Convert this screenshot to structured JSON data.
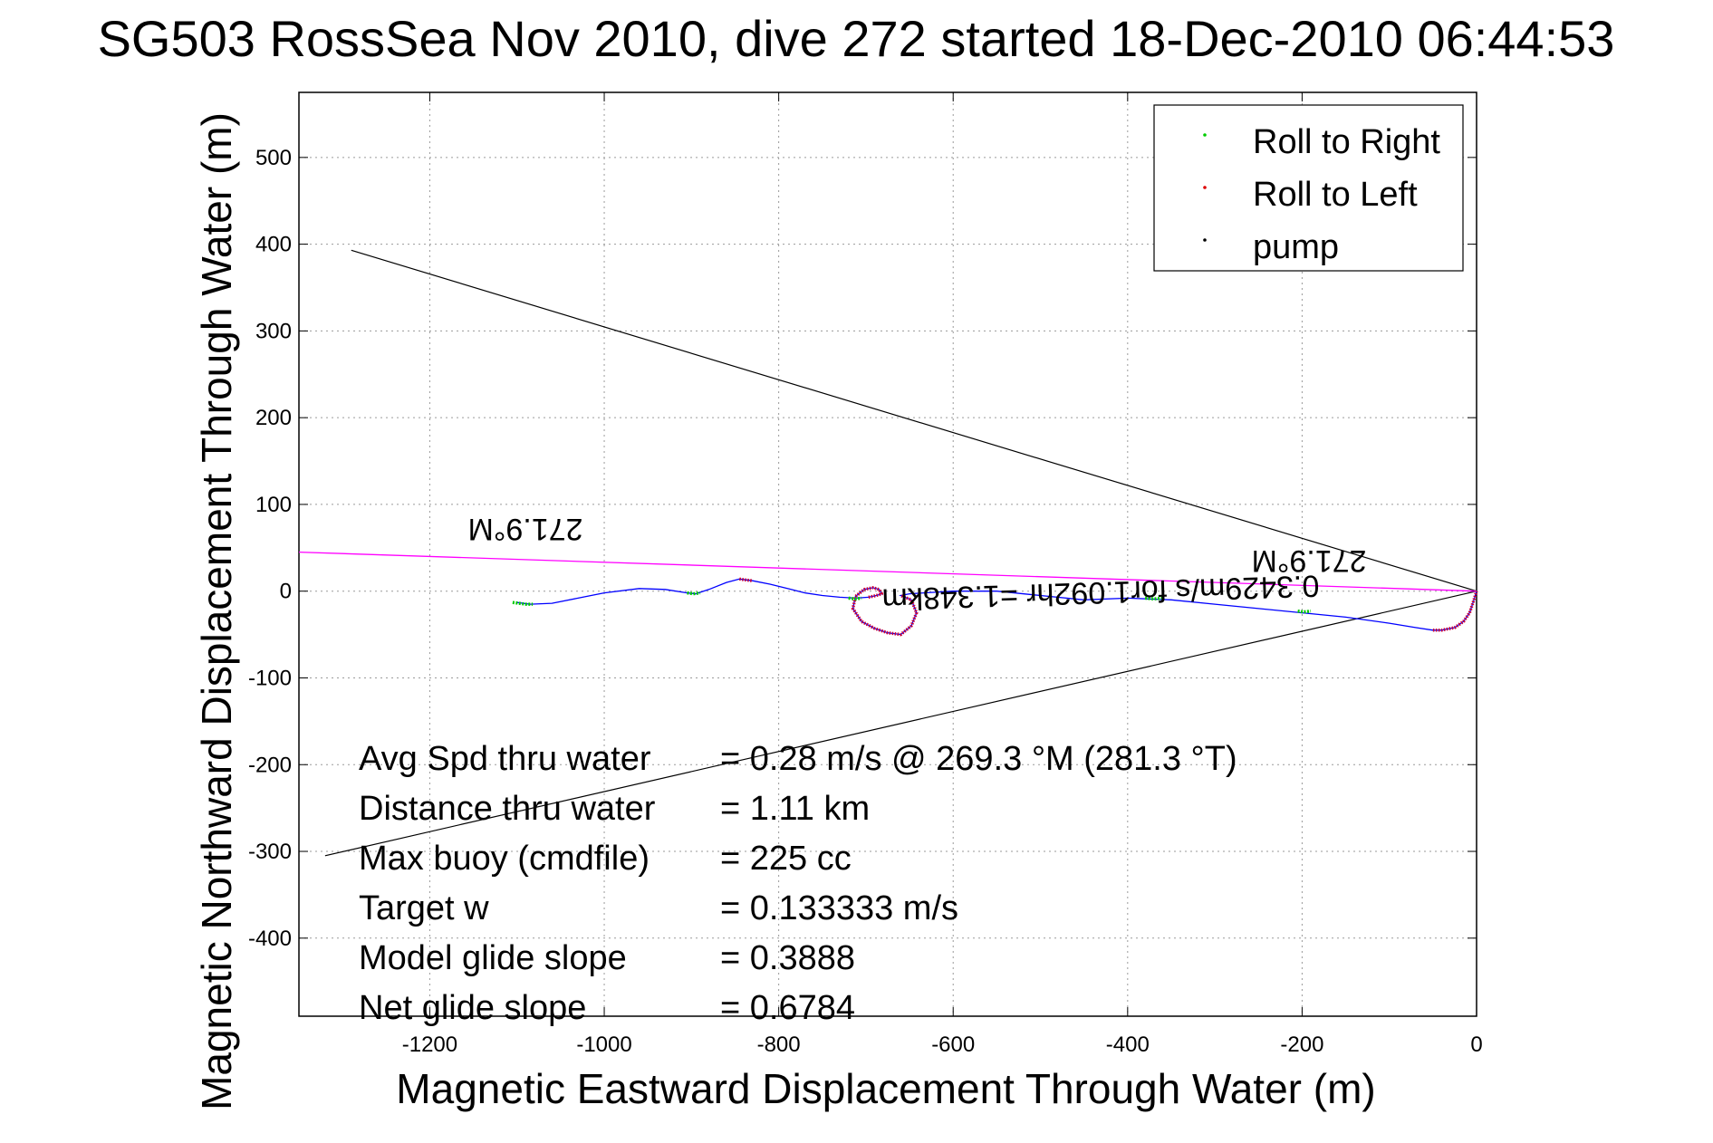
{
  "chart_data": {
    "type": "line",
    "title": "SG503 RossSea Nov 2010, dive 272 started 18-Dec-2010 06:44:53",
    "xlabel": "Magnetic Eastward Displacement Through Water (m)",
    "ylabel": "Magnetic Northward Displacement Through Water (m)",
    "xlim": [
      -1350,
      0
    ],
    "ylim": [
      -490,
      575
    ],
    "xticks": [
      -1200,
      -1000,
      -800,
      -600,
      -400,
      -200,
      0
    ],
    "yticks": [
      500,
      400,
      300,
      200,
      100,
      0,
      -100,
      -200,
      -300,
      -400
    ],
    "grid": true,
    "legend_position": "top-right",
    "legend": [
      {
        "label": "Roll to Right",
        "color": "#00cc00"
      },
      {
        "label": "Roll to Left",
        "color": "#dd0000"
      },
      {
        "label": "pump",
        "color": "#000000"
      }
    ],
    "track": {
      "color": "#0000ff",
      "x": [
        -1100,
        -1085,
        -1060,
        -1030,
        -1000,
        -960,
        -930,
        -905,
        -895,
        -880,
        -860,
        -845,
        -830,
        -810,
        -790,
        -770,
        -750,
        -730,
        -712,
        -697,
        -688,
        -682,
        -685,
        -692,
        -702,
        -712,
        -715,
        -705,
        -690,
        -675,
        -660,
        -648,
        -642,
        -648,
        -660,
        -650,
        -600,
        -550,
        -500,
        -450,
        -400,
        -350,
        -300,
        -250,
        -200,
        -150,
        -100,
        -70,
        -50,
        -40,
        -35,
        -25,
        -15,
        -8,
        -3,
        0
      ],
      "y": [
        -13,
        -15,
        -14,
        -8,
        -2,
        3,
        2,
        -2,
        -3,
        2,
        10,
        14,
        12,
        8,
        3,
        -2,
        -5,
        -7,
        -8,
        -7,
        -5,
        -3,
        2,
        4,
        2,
        -6,
        -20,
        -35,
        -43,
        -48,
        -50,
        -40,
        -25,
        -10,
        -5,
        -3,
        0,
        0,
        -5,
        -10,
        -8,
        -10,
        -15,
        -20,
        -25,
        -30,
        -37,
        -42,
        -45,
        -45,
        -44,
        -42,
        -35,
        -25,
        -10,
        0
      ]
    },
    "roll_right_segments": [
      {
        "x": [
          -1105,
          -1098,
          -1090,
          -1082
        ],
        "y": [
          -13,
          -14,
          -15,
          -15
        ]
      },
      {
        "x": [
          -905,
          -898,
          -890
        ],
        "y": [
          -2,
          -3,
          -2
        ]
      },
      {
        "x": [
          -720,
          -712,
          -705
        ],
        "y": [
          -8,
          -9,
          -8
        ]
      },
      {
        "x": [
          -380,
          -370,
          -360
        ],
        "y": [
          -8,
          -9,
          -8
        ]
      },
      {
        "x": [
          -205,
          -198,
          -190
        ],
        "y": [
          -23,
          -24,
          -23
        ]
      }
    ],
    "roll_left_segments": [
      {
        "x": [
          -845,
          -838,
          -830
        ],
        "y": [
          14,
          13,
          12
        ]
      },
      {
        "x": [
          -697,
          -688,
          -682,
          -685,
          -692,
          -702,
          -712,
          -715,
          -705,
          -690,
          -675,
          -660,
          -648,
          -642,
          -648,
          -660
        ],
        "y": [
          -7,
          -5,
          -3,
          2,
          4,
          2,
          -6,
          -20,
          -35,
          -43,
          -48,
          -50,
          -40,
          -25,
          -10,
          -5
        ]
      },
      {
        "x": [
          -50,
          -40,
          -35,
          -25,
          -15,
          -8,
          -3,
          0
        ],
        "y": [
          -45,
          -45,
          -44,
          -42,
          -35,
          -25,
          -10,
          0
        ]
      }
    ],
    "heading_line": {
      "color": "#ff00ff",
      "from": [
        0,
        0
      ],
      "to": [
        -1350,
        45
      ]
    },
    "pump_lines": [
      {
        "from": [
          0,
          0
        ],
        "to": [
          -1290,
          393
        ]
      },
      {
        "from": [
          0,
          0
        ],
        "to": [
          -1320,
          -305
        ]
      }
    ],
    "annotations": {
      "heading_label_1": "271.9°M",
      "heading_label_2": "271.9°M",
      "speed_label": "0.3429m/s for1.092hr =1.348km"
    },
    "stats": [
      {
        "label": "Avg Spd thru water",
        "value": "=  0.28 m/s @ 269.3 °M (281.3 °T)"
      },
      {
        "label": "Distance thru water",
        "value": "=  1.11 km"
      },
      {
        "label": "Max buoy (cmdfile)",
        "value": "= 225 cc"
      },
      {
        "label": "Target w",
        "value": "= 0.133333 m/s"
      },
      {
        "label": "Model glide slope",
        "value": "= 0.3888"
      },
      {
        "label": "Net glide slope",
        "value": "= 0.6784"
      }
    ]
  }
}
